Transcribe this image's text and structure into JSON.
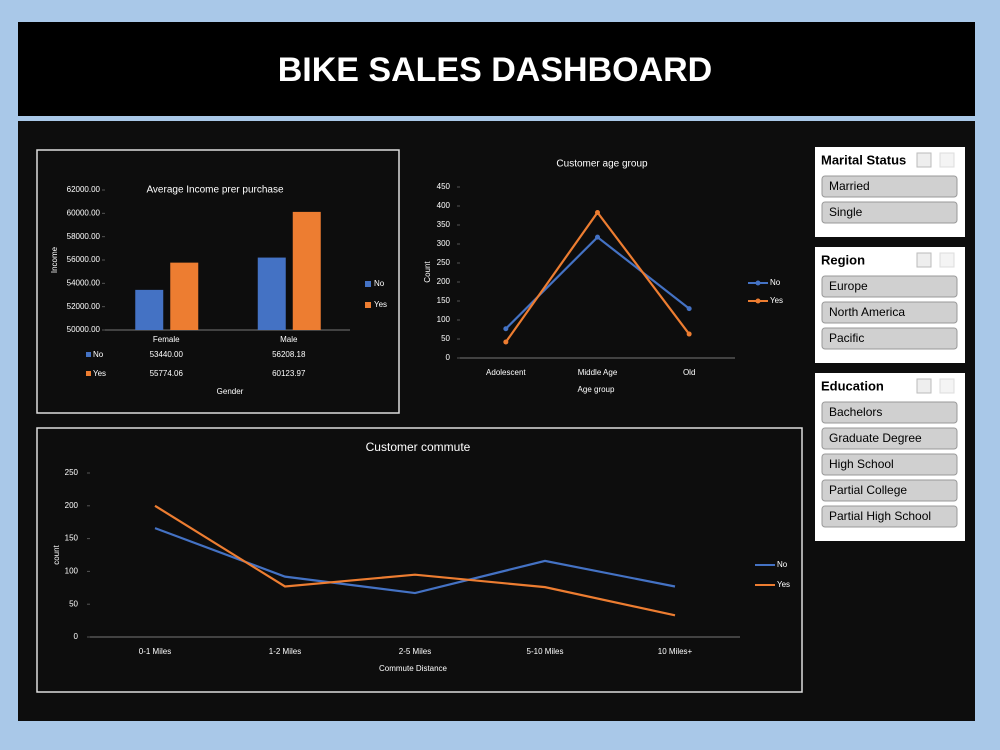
{
  "header": {
    "title": "BIKE SALES DASHBOARD"
  },
  "chart_data": [
    {
      "type": "bar",
      "title": "Average Income prer purchase",
      "x_label": "Gender",
      "y_label": "Income",
      "categories": [
        "Female",
        "Male"
      ],
      "series": [
        {
          "name": "No",
          "color": "#4472c4",
          "values": [
            53440.0,
            56208.18
          ],
          "value_labels": [
            "53440.00",
            "56208.18"
          ]
        },
        {
          "name": "Yes",
          "color": "#ed7d31",
          "values": [
            55774.06,
            60123.97
          ],
          "value_labels": [
            "55774.06",
            "60123.97"
          ]
        }
      ],
      "ylim": [
        50000,
        62000
      ],
      "yticks": [
        {
          "value": 50000,
          "label": "50000.00"
        },
        {
          "value": 52000,
          "label": "52000.00"
        },
        {
          "value": 54000,
          "label": "54000.00"
        },
        {
          "value": 56000,
          "label": "56000.00"
        },
        {
          "value": 58000,
          "label": "58000.00"
        },
        {
          "value": 60000,
          "label": "60000.00"
        },
        {
          "value": 62000,
          "label": "62000.00"
        }
      ],
      "data_table": true
    },
    {
      "type": "line",
      "title": "Customer age group",
      "x_label": "Age group",
      "y_label": "Count",
      "categories": [
        "Adolescent",
        "Middle Age",
        "Old"
      ],
      "series": [
        {
          "name": "No",
          "color": "#4472c4",
          "values": [
            77,
            318,
            130
          ]
        },
        {
          "name": "Yes",
          "color": "#ed7d31",
          "values": [
            42,
            383,
            63
          ]
        }
      ],
      "ylim": [
        0,
        450
      ],
      "yticks": [
        0,
        50,
        100,
        150,
        200,
        250,
        300,
        350,
        400,
        450
      ],
      "markers": true
    },
    {
      "type": "line",
      "title": "Customer commute",
      "x_label": "Commute Distance",
      "y_label": "count",
      "categories": [
        "0-1 Miles",
        "1-2 Miles",
        "2-5 Miles",
        "5-10 Miles",
        "10 Miles+"
      ],
      "series": [
        {
          "name": "No",
          "color": "#4472c4",
          "values": [
            166,
            92,
            67,
            116,
            77
          ]
        },
        {
          "name": "Yes",
          "color": "#ed7d31",
          "values": [
            200,
            77,
            95,
            76,
            33
          ]
        }
      ],
      "ylim": [
        0,
        250
      ],
      "yticks": [
        0,
        50,
        100,
        150,
        200,
        250
      ],
      "markers": false
    }
  ],
  "slicers": [
    {
      "title": "Marital Status",
      "items": [
        "Married",
        "Single"
      ]
    },
    {
      "title": "Region",
      "items": [
        "Europe",
        "North America",
        "Pacific"
      ]
    },
    {
      "title": "Education",
      "items": [
        "Bachelors",
        "Graduate Degree",
        "High School",
        "Partial College",
        "Partial High School"
      ]
    }
  ]
}
